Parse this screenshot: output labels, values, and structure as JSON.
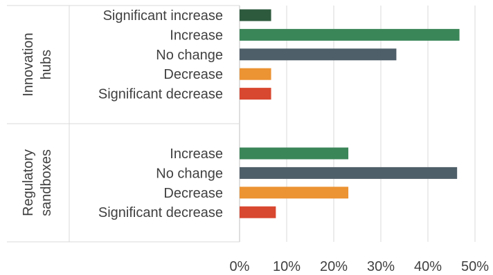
{
  "chart_data": {
    "type": "bar",
    "orientation": "horizontal",
    "x_axis": {
      "ticks": [
        "0%",
        "10%",
        "20%",
        "30%",
        "40%",
        "50%"
      ],
      "min": 0,
      "max": 50,
      "unit": "%"
    },
    "grid": true,
    "legend": "none",
    "groups": [
      {
        "label_lines": [
          "Innovation",
          "hubs"
        ],
        "bars": [
          {
            "label": "Significant increase",
            "value": 6.7,
            "color": "#2d5a3d"
          },
          {
            "label": "Increase",
            "value": 46.7,
            "color": "#3b8659"
          },
          {
            "label": "No change",
            "value": 33.3,
            "color": "#4f5f69"
          },
          {
            "label": "Decrease",
            "value": 6.7,
            "color": "#ec9333"
          },
          {
            "label": "Significant decrease",
            "value": 6.7,
            "color": "#d8472f"
          }
        ]
      },
      {
        "label_lines": [
          "Regulatory",
          "sandboxes"
        ],
        "bars": [
          {
            "label": "Increase",
            "value": 23.1,
            "color": "#3b8659"
          },
          {
            "label": "No change",
            "value": 46.2,
            "color": "#4f5f69"
          },
          {
            "label": "Decrease",
            "value": 23.1,
            "color": "#ec9333"
          },
          {
            "label": "Significant decrease",
            "value": 7.7,
            "color": "#d8472f"
          }
        ]
      }
    ]
  }
}
